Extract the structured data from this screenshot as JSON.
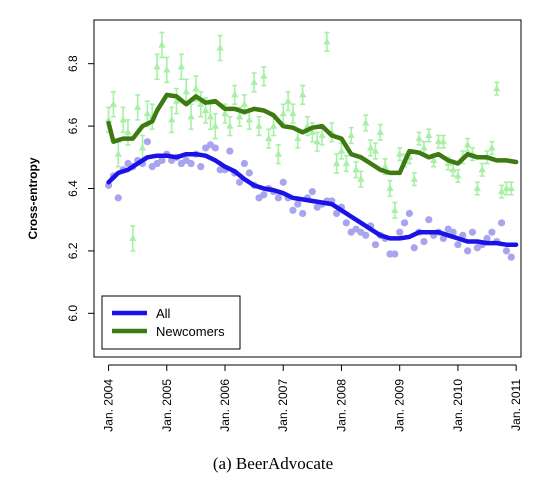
{
  "caption": "(a) BeerAdvocate",
  "colors": {
    "all_line": "#1a12e6",
    "all_points": "#a9a4ee",
    "newcomers_line": "#3e7a12",
    "newcomers_points": "#a8f0a6"
  },
  "chart_data": {
    "type": "line",
    "title": "",
    "xlabel": "",
    "ylabel": "Cross-entropy",
    "xlim": [
      "2003-10",
      "2011-02"
    ],
    "ylim": [
      5.86,
      6.94
    ],
    "x_ticks": [
      "Jan. 2004",
      "Jan. 2005",
      "Jan. 2006",
      "Jan. 2007",
      "Jan. 2008",
      "Jan. 2009",
      "Jan. 2010",
      "Jan. 2011"
    ],
    "y_ticks": [
      "6.0",
      "6.2",
      "6.4",
      "6.6",
      "6.8"
    ],
    "legend": {
      "placement": "bottom-left",
      "entries": [
        "All",
        "Newcomers"
      ]
    },
    "grid": false,
    "series": [
      {
        "name": "All",
        "style": "smoothed line with monthly points",
        "line": {
          "x": [
            "2004-01",
            "2004-03",
            "2004-05",
            "2004-07",
            "2004-09",
            "2004-11",
            "2005-01",
            "2005-03",
            "2005-05",
            "2005-07",
            "2005-09",
            "2005-11",
            "2006-01",
            "2006-03",
            "2006-05",
            "2006-07",
            "2006-09",
            "2006-11",
            "2007-01",
            "2007-03",
            "2007-05",
            "2007-07",
            "2007-09",
            "2007-11",
            "2008-01",
            "2008-03",
            "2008-05",
            "2008-07",
            "2008-09",
            "2008-11",
            "2009-01",
            "2009-03",
            "2009-05",
            "2009-07",
            "2009-09",
            "2009-11",
            "2010-01",
            "2010-03",
            "2010-05",
            "2010-07",
            "2010-09",
            "2010-11",
            "2011-01"
          ],
          "y": [
            6.42,
            6.45,
            6.46,
            6.48,
            6.5,
            6.505,
            6.505,
            6.5,
            6.51,
            6.51,
            6.505,
            6.49,
            6.47,
            6.455,
            6.43,
            6.41,
            6.4,
            6.395,
            6.385,
            6.37,
            6.365,
            6.36,
            6.355,
            6.35,
            6.33,
            6.31,
            6.29,
            6.27,
            6.25,
            6.24,
            6.24,
            6.245,
            6.26,
            6.26,
            6.26,
            6.25,
            6.24,
            6.23,
            6.23,
            6.225,
            6.225,
            6.22,
            6.22
          ]
        },
        "points": {
          "x": [
            "2004-01",
            "2004-02",
            "2004-03",
            "2004-04",
            "2004-05",
            "2004-06",
            "2004-07",
            "2004-08",
            "2004-09",
            "2004-10",
            "2004-11",
            "2004-12",
            "2005-01",
            "2005-02",
            "2005-03",
            "2005-04",
            "2005-05",
            "2005-06",
            "2005-07",
            "2005-08",
            "2005-09",
            "2005-10",
            "2005-11",
            "2005-12",
            "2006-01",
            "2006-02",
            "2006-03",
            "2006-04",
            "2006-05",
            "2006-06",
            "2006-07",
            "2006-08",
            "2006-09",
            "2006-10",
            "2006-11",
            "2006-12",
            "2007-01",
            "2007-02",
            "2007-03",
            "2007-04",
            "2007-05",
            "2007-06",
            "2007-07",
            "2007-08",
            "2007-09",
            "2007-10",
            "2007-11",
            "2007-12",
            "2008-01",
            "2008-02",
            "2008-03",
            "2008-04",
            "2008-05",
            "2008-06",
            "2008-07",
            "2008-08",
            "2008-09",
            "2008-10",
            "2008-11",
            "2008-12",
            "2009-01",
            "2009-02",
            "2009-03",
            "2009-04",
            "2009-05",
            "2009-06",
            "2009-07",
            "2009-08",
            "2009-09",
            "2009-10",
            "2009-11",
            "2009-12",
            "2010-01",
            "2010-02",
            "2010-03",
            "2010-04",
            "2010-05",
            "2010-06",
            "2010-07",
            "2010-08",
            "2010-09",
            "2010-10",
            "2010-11",
            "2010-12"
          ],
          "y": [
            6.41,
            6.44,
            6.37,
            6.46,
            6.48,
            6.47,
            6.49,
            6.48,
            6.55,
            6.47,
            6.48,
            6.49,
            6.51,
            6.49,
            6.5,
            6.48,
            6.49,
            6.48,
            6.51,
            6.47,
            6.53,
            6.54,
            6.53,
            6.46,
            6.46,
            6.52,
            6.45,
            6.42,
            6.48,
            6.45,
            6.41,
            6.37,
            6.38,
            6.4,
            6.39,
            6.37,
            6.42,
            6.37,
            6.33,
            6.35,
            6.32,
            6.37,
            6.39,
            6.34,
            6.35,
            6.36,
            6.36,
            6.32,
            6.34,
            6.29,
            6.26,
            6.27,
            6.26,
            6.25,
            6.28,
            6.22,
            6.25,
            6.24,
            6.19,
            6.19,
            6.26,
            6.29,
            6.32,
            6.21,
            6.26,
            6.23,
            6.3,
            6.25,
            6.26,
            6.24,
            6.27,
            6.26,
            6.22,
            6.25,
            6.2,
            6.26,
            6.21,
            6.22,
            6.24,
            6.26,
            6.23,
            6.29,
            6.2,
            6.18
          ]
        }
      },
      {
        "name": "Newcomers",
        "style": "smoothed line with monthly points and error bars",
        "line": {
          "x": [
            "2004-01",
            "2004-02",
            "2004-04",
            "2004-06",
            "2004-08",
            "2004-10",
            "2004-11",
            "2005-01",
            "2005-03",
            "2005-05",
            "2005-07",
            "2005-09",
            "2005-11",
            "2006-01",
            "2006-03",
            "2006-05",
            "2006-07",
            "2006-09",
            "2006-11",
            "2007-01",
            "2007-03",
            "2007-05",
            "2007-07",
            "2007-09",
            "2007-11",
            "2008-01",
            "2008-03",
            "2008-05",
            "2008-07",
            "2008-09",
            "2008-11",
            "2009-01",
            "2009-03",
            "2009-05",
            "2009-07",
            "2009-09",
            "2009-11",
            "2010-01",
            "2010-03",
            "2010-05",
            "2010-07",
            "2010-09",
            "2010-11",
            "2011-01"
          ],
          "y": [
            6.61,
            6.55,
            6.56,
            6.56,
            6.6,
            6.615,
            6.65,
            6.7,
            6.695,
            6.67,
            6.695,
            6.675,
            6.68,
            6.655,
            6.655,
            6.645,
            6.655,
            6.65,
            6.635,
            6.6,
            6.595,
            6.58,
            6.595,
            6.6,
            6.57,
            6.56,
            6.51,
            6.5,
            6.48,
            6.46,
            6.45,
            6.45,
            6.52,
            6.515,
            6.5,
            6.51,
            6.49,
            6.48,
            6.51,
            6.5,
            6.5,
            6.49,
            6.49,
            6.485
          ]
        },
        "points": {
          "x": [
            "2004-01",
            "2004-02",
            "2004-03",
            "2004-04",
            "2004-05",
            "2004-06",
            "2004-07",
            "2004-08",
            "2004-09",
            "2004-10",
            "2004-11",
            "2004-12",
            "2005-01",
            "2005-02",
            "2005-03",
            "2005-04",
            "2005-05",
            "2005-06",
            "2005-07",
            "2005-08",
            "2005-09",
            "2005-10",
            "2005-11",
            "2005-12",
            "2006-01",
            "2006-02",
            "2006-03",
            "2006-04",
            "2006-05",
            "2006-06",
            "2006-07",
            "2006-08",
            "2006-09",
            "2006-10",
            "2006-11",
            "2006-12",
            "2007-01",
            "2007-02",
            "2007-03",
            "2007-04",
            "2007-05",
            "2007-06",
            "2007-07",
            "2007-08",
            "2007-09",
            "2007-10",
            "2007-11",
            "2007-12",
            "2008-01",
            "2008-02",
            "2008-03",
            "2008-04",
            "2008-05",
            "2008-06",
            "2008-07",
            "2008-08",
            "2008-09",
            "2008-10",
            "2008-11",
            "2008-12",
            "2009-01",
            "2009-02",
            "2009-03",
            "2009-04",
            "2009-05",
            "2009-06",
            "2009-07",
            "2009-08",
            "2009-09",
            "2009-10",
            "2009-11",
            "2009-12",
            "2010-01",
            "2010-02",
            "2010-03",
            "2010-04",
            "2010-05",
            "2010-06",
            "2010-07",
            "2010-08",
            "2010-09",
            "2010-10",
            "2010-11",
            "2010-12"
          ],
          "y": [
            6.62,
            6.67,
            6.51,
            6.62,
            6.58,
            6.24,
            6.66,
            6.53,
            6.64,
            6.63,
            6.79,
            6.86,
            6.78,
            6.62,
            6.68,
            6.79,
            6.71,
            6.63,
            6.72,
            6.67,
            6.65,
            6.63,
            6.6,
            6.85,
            6.64,
            6.6,
            6.7,
            6.63,
            6.67,
            6.62,
            6.74,
            6.6,
            6.76,
            6.56,
            6.6,
            6.51,
            6.64,
            6.68,
            6.64,
            6.56,
            6.7,
            6.6,
            6.58,
            6.55,
            6.57,
            6.87,
            6.58,
            6.48,
            6.52,
            6.48,
            6.57,
            6.46,
            6.43,
            6.61,
            6.53,
            6.52,
            6.58,
            6.47,
            6.4,
            6.33,
            6.51,
            6.49,
            6.5,
            6.43,
            6.56,
            6.53,
            6.57,
            6.49,
            6.55,
            6.55,
            6.48,
            6.46,
            6.44,
            6.5,
            6.54,
            6.51,
            6.4,
            6.46,
            6.5,
            6.53,
            6.72,
            6.39,
            6.4,
            6.4
          ],
          "err": [
            0.04,
            0.04,
            0.04,
            0.04,
            0.04,
            0.04,
            0.04,
            0.04,
            0.04,
            0.04,
            0.04,
            0.04,
            0.04,
            0.04,
            0.04,
            0.04,
            0.04,
            0.04,
            0.04,
            0.04,
            0.04,
            0.04,
            0.04,
            0.04,
            0.03,
            0.03,
            0.03,
            0.03,
            0.03,
            0.03,
            0.03,
            0.03,
            0.03,
            0.03,
            0.03,
            0.03,
            0.03,
            0.03,
            0.03,
            0.03,
            0.03,
            0.03,
            0.03,
            0.03,
            0.03,
            0.03,
            0.03,
            0.03,
            0.025,
            0.025,
            0.025,
            0.025,
            0.025,
            0.025,
            0.025,
            0.025,
            0.025,
            0.025,
            0.025,
            0.025,
            0.02,
            0.02,
            0.02,
            0.02,
            0.02,
            0.02,
            0.02,
            0.02,
            0.02,
            0.02,
            0.02,
            0.02,
            0.02,
            0.02,
            0.02,
            0.02,
            0.02,
            0.02,
            0.02,
            0.02,
            0.02,
            0.02,
            0.02,
            0.02
          ]
        }
      }
    ]
  }
}
